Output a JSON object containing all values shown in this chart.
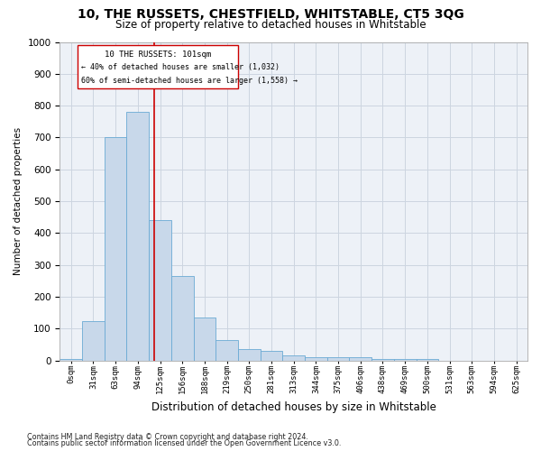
{
  "title": "10, THE RUSSETS, CHESTFIELD, WHITSTABLE, CT5 3QG",
  "subtitle": "Size of property relative to detached houses in Whitstable",
  "xlabel": "Distribution of detached houses by size in Whitstable",
  "ylabel": "Number of detached properties",
  "footnote1": "Contains HM Land Registry data © Crown copyright and database right 2024.",
  "footnote2": "Contains public sector information licensed under the Open Government Licence v3.0.",
  "annotation_line1": "10 THE RUSSETS: 101sqm",
  "annotation_line2": "← 40% of detached houses are smaller (1,032)",
  "annotation_line3": "60% of semi-detached houses are larger (1,558) →",
  "bar_color": "#c8d8ea",
  "bar_edge_color": "#6aaad4",
  "grid_color": "#ccd5e0",
  "background_color": "#edf1f7",
  "vline_color": "#cc0000",
  "box_edge_color": "#cc0000",
  "categories": [
    "0sqm",
    "31sqm",
    "63sqm",
    "94sqm",
    "125sqm",
    "156sqm",
    "188sqm",
    "219sqm",
    "250sqm",
    "281sqm",
    "313sqm",
    "344sqm",
    "375sqm",
    "406sqm",
    "438sqm",
    "469sqm",
    "500sqm",
    "531sqm",
    "563sqm",
    "594sqm",
    "625sqm"
  ],
  "values": [
    5,
    125,
    700,
    780,
    440,
    265,
    135,
    65,
    35,
    30,
    15,
    10,
    10,
    10,
    5,
    5,
    5,
    0,
    0,
    0,
    0
  ],
  "ylim": [
    0,
    1000
  ],
  "yticks": [
    0,
    100,
    200,
    300,
    400,
    500,
    600,
    700,
    800,
    900,
    1000
  ],
  "vline_x": 3.73,
  "figwidth": 6.0,
  "figheight": 5.0,
  "dpi": 100
}
